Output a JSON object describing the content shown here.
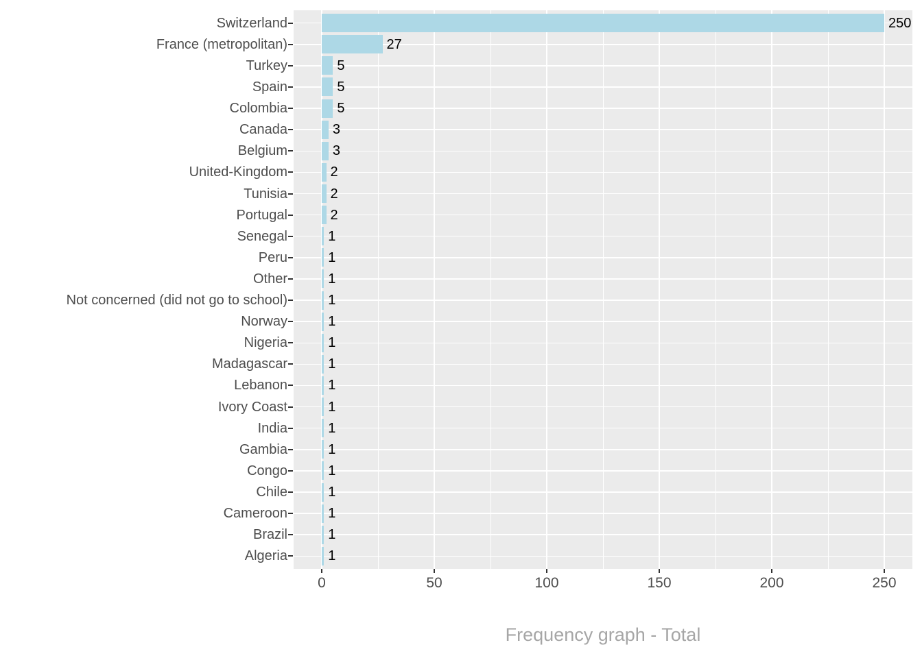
{
  "chart_data": {
    "type": "bar",
    "orientation": "horizontal",
    "title": "Frequency graph - Total",
    "categories": [
      "Switzerland",
      "France (metropolitan)",
      "Turkey",
      "Spain",
      "Colombia",
      "Canada",
      "Belgium",
      "United-Kingdom",
      "Tunisia",
      "Portugal",
      "Senegal",
      "Peru",
      "Other",
      "Not concerned (did not go to school)",
      "Norway",
      "Nigeria",
      "Madagascar",
      "Lebanon",
      "Ivory Coast",
      "India",
      "Gambia",
      "Congo",
      "Chile",
      "Cameroon",
      "Brazil",
      "Algeria"
    ],
    "values": [
      250,
      27,
      5,
      5,
      5,
      3,
      3,
      2,
      2,
      2,
      1,
      1,
      1,
      1,
      1,
      1,
      1,
      1,
      1,
      1,
      1,
      1,
      1,
      1,
      1,
      1
    ],
    "value_labels": [
      "250",
      "27",
      "5",
      "5",
      "5",
      "3",
      "3",
      "2",
      "2",
      "2",
      "1",
      "1",
      "1",
      "1",
      "1",
      "1",
      "1",
      "1",
      "1",
      "1",
      "1",
      "1",
      "1",
      "1",
      "1",
      "1"
    ],
    "xlabel": "",
    "ylabel": "",
    "x_ticks": [
      0,
      50,
      100,
      150,
      200,
      250
    ],
    "x_tick_labels": [
      "0",
      "50",
      "100",
      "150",
      "200",
      "250"
    ],
    "x_minor_ticks": [
      25,
      75,
      125,
      175,
      225
    ],
    "xlim": [
      -12.5,
      262.5
    ],
    "grid": "on",
    "legend": "none",
    "colors": {
      "bar_fill": "#ADD8E6",
      "panel_background": "#EBEBEB",
      "gridline": "#FFFFFF",
      "axis_text": "#4D4D4D",
      "value_label_text": "#000000",
      "tick_mark": "#333333",
      "title_text": "#A6A6A6",
      "page_background": "#FFFFFF"
    }
  }
}
